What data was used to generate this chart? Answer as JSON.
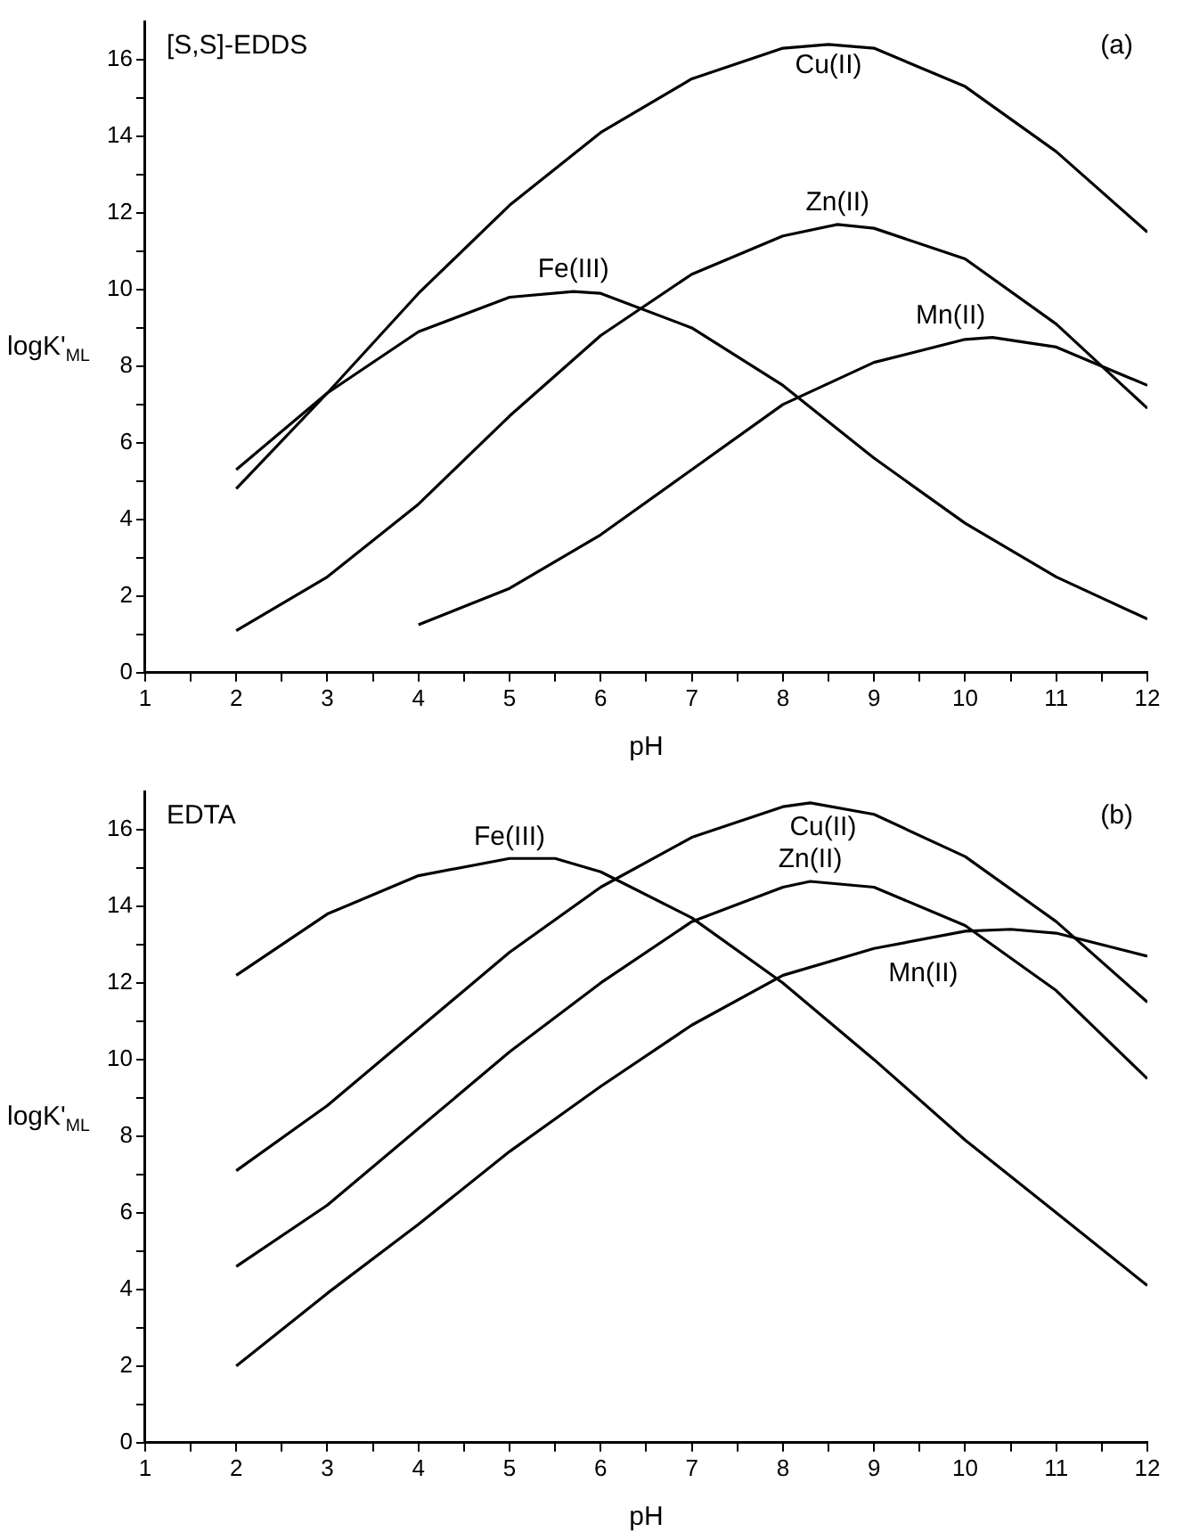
{
  "chart_data": [
    {
      "type": "line",
      "title": "[S,S]-EDDS",
      "xlabel": "pH",
      "ylabel": "logK'$_{ML}$",
      "grid": false,
      "legend": false,
      "marker": "none",
      "line_style": "solid",
      "xlim": [
        1,
        12
      ],
      "ylim": [
        0,
        17
      ],
      "xticks": [
        1,
        {
          "value": 1.5,
          "label": null
        },
        2,
        {
          "value": 2.5,
          "label": null
        },
        3,
        {
          "value": 3.5,
          "label": null
        },
        4,
        {
          "value": 4.5,
          "label": null
        },
        5,
        {
          "value": 5.5,
          "label": null
        },
        6,
        {
          "value": 6.5,
          "label": null
        },
        7,
        {
          "value": 7.5,
          "label": null
        },
        8,
        {
          "value": 8.5,
          "label": null
        },
        9,
        {
          "value": 9.5,
          "label": null
        },
        10,
        {
          "value": 10.5,
          "label": null
        },
        11,
        {
          "value": 11.5,
          "label": null
        },
        12
      ],
      "yticks": [
        0,
        {
          "value": 1,
          "label": null
        },
        2,
        {
          "value": 3,
          "label": null
        },
        4,
        {
          "value": 5,
          "label": null
        },
        6,
        {
          "value": 7,
          "label": null
        },
        8,
        {
          "value": 9,
          "label": null
        },
        10,
        {
          "value": 11,
          "label": null
        },
        12,
        {
          "value": 13,
          "label": null
        },
        14,
        {
          "value": 15,
          "label": null
        },
        16
      ],
      "series": [
        {
          "name": "Cu(II)",
          "color": "#000000",
          "x": [
            2,
            3,
            4,
            5,
            6,
            7,
            8,
            8.5,
            9,
            10,
            11,
            12
          ],
          "values": [
            4.8,
            7.3,
            9.9,
            12.2,
            14.1,
            15.5,
            16.3,
            16.4,
            16.3,
            15.3,
            13.6,
            11.5
          ]
        },
        {
          "name": "Fe(III)",
          "color": "#000000",
          "x": [
            2,
            3,
            4,
            5,
            5.7,
            6,
            7,
            8,
            9,
            10,
            11,
            12
          ],
          "values": [
            5.3,
            7.3,
            8.9,
            9.8,
            9.95,
            9.9,
            9.0,
            7.5,
            5.6,
            3.9,
            2.5,
            1.4
          ]
        },
        {
          "name": "Zn(II)",
          "color": "#000000",
          "x": [
            2,
            3,
            4,
            5,
            6,
            7,
            8,
            8.6,
            9,
            10,
            11,
            12
          ],
          "values": [
            1.1,
            2.5,
            4.4,
            6.7,
            8.8,
            10.4,
            11.4,
            11.7,
            11.6,
            10.8,
            9.1,
            6.9
          ]
        },
        {
          "name": "Mn(II)",
          "color": "#000000",
          "x": [
            4,
            5,
            6,
            7,
            8,
            9,
            10,
            10.3,
            11,
            12
          ],
          "values": [
            1.25,
            2.2,
            3.6,
            5.3,
            7.0,
            8.1,
            8.7,
            8.75,
            8.5,
            7.5
          ]
        }
      ],
      "annotations": [
        "(a)"
      ]
    },
    {
      "type": "line",
      "title": "EDTA",
      "xlabel": "pH",
      "ylabel": "logK'$_{ML}$",
      "grid": false,
      "legend": false,
      "marker": "none",
      "line_style": "solid",
      "xlim": [
        1,
        12
      ],
      "ylim": [
        0,
        17
      ],
      "xticks": [
        1,
        {
          "value": 1.5,
          "label": null
        },
        2,
        {
          "value": 2.5,
          "label": null
        },
        3,
        {
          "value": 3.5,
          "label": null
        },
        4,
        {
          "value": 4.5,
          "label": null
        },
        5,
        {
          "value": 5.5,
          "label": null
        },
        6,
        {
          "value": 6.5,
          "label": null
        },
        7,
        {
          "value": 7.5,
          "label": null
        },
        8,
        {
          "value": 8.5,
          "label": null
        },
        9,
        {
          "value": 9.5,
          "label": null
        },
        10,
        {
          "value": 10.5,
          "label": null
        },
        11,
        {
          "value": 11.5,
          "label": null
        },
        12
      ],
      "yticks": [
        0,
        {
          "value": 1,
          "label": null
        },
        2,
        {
          "value": 3,
          "label": null
        },
        4,
        {
          "value": 5,
          "label": null
        },
        6,
        {
          "value": 7,
          "label": null
        },
        8,
        {
          "value": 9,
          "label": null
        },
        10,
        {
          "value": 11,
          "label": null
        },
        12,
        {
          "value": 13,
          "label": null
        },
        14,
        {
          "value": 15,
          "label": null
        },
        16
      ],
      "series": [
        {
          "name": "Fe(III)",
          "color": "#000000",
          "x": [
            2,
            3,
            4,
            5,
            5.5,
            6,
            7,
            8,
            9,
            10,
            11,
            12
          ],
          "values": [
            12.2,
            13.8,
            14.8,
            15.25,
            15.25,
            14.9,
            13.7,
            12.0,
            10.0,
            7.9,
            6.0,
            4.1
          ]
        },
        {
          "name": "Cu(II)",
          "color": "#000000",
          "x": [
            2,
            3,
            4,
            5,
            6,
            7,
            8,
            8.3,
            9,
            10,
            11,
            12
          ],
          "values": [
            7.1,
            8.8,
            10.8,
            12.8,
            14.5,
            15.8,
            16.6,
            16.7,
            16.4,
            15.3,
            13.6,
            11.5
          ]
        },
        {
          "name": "Zn(II)",
          "color": "#000000",
          "x": [
            2,
            3,
            4,
            5,
            6,
            7,
            8,
            8.3,
            9,
            10,
            11,
            12
          ],
          "values": [
            4.6,
            6.2,
            8.2,
            10.2,
            12.0,
            13.6,
            14.5,
            14.65,
            14.5,
            13.5,
            11.8,
            9.5
          ]
        },
        {
          "name": "Mn(II)",
          "color": "#000000",
          "x": [
            2,
            3,
            4,
            5,
            6,
            7,
            8,
            9,
            10,
            10.5,
            11,
            12
          ],
          "values": [
            2.0,
            3.9,
            5.7,
            7.6,
            9.3,
            10.9,
            12.2,
            12.9,
            13.35,
            13.4,
            13.3,
            12.7
          ]
        }
      ],
      "annotations": [
        "(b)"
      ]
    }
  ]
}
